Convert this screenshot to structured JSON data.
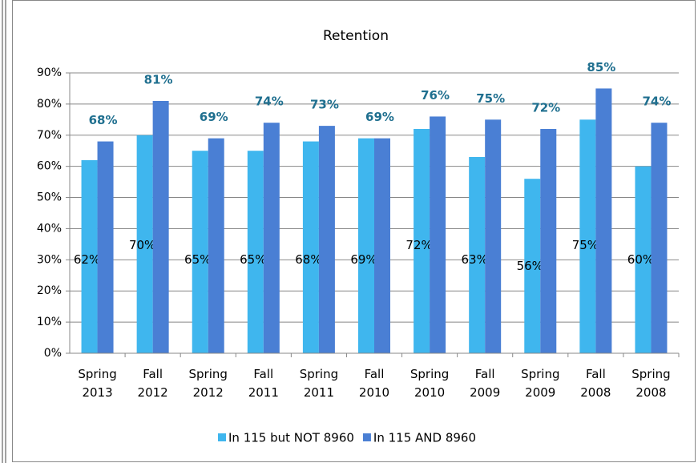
{
  "chart_data": {
    "type": "bar",
    "title": "Retention",
    "categories": [
      "Spring 2013",
      "Fall 2012",
      "Spring 2012",
      "Fall 2011",
      "Spring 2011",
      "Fall 2010",
      "Spring 2010",
      "Fall 2009",
      "Spring 2009",
      "Fall 2008",
      "Spring 2008"
    ],
    "series": [
      {
        "name": "In 115 but NOT 8960",
        "color": "#3fb6ee",
        "values": [
          62,
          70,
          65,
          65,
          68,
          69,
          72,
          63,
          56,
          75,
          60
        ],
        "value_labels": [
          "62%",
          "70%",
          "65%",
          "65%",
          "68%",
          "69%",
          "72%",
          "63%",
          "56%",
          "75%",
          "60%"
        ]
      },
      {
        "name": "In 115 AND 8960",
        "color": "#4a7fd4",
        "values": [
          68,
          81,
          69,
          74,
          73,
          69,
          76,
          75,
          72,
          85,
          74
        ],
        "value_labels": [
          "68%",
          "81%",
          "69%",
          "74%",
          "73%",
          "69%",
          "76%",
          "75%",
          "72%",
          "85%",
          "74%"
        ]
      }
    ],
    "ylim": [
      0,
      90
    ],
    "yticks": [
      {
        "value": 0,
        "label": "0%"
      },
      {
        "value": 10,
        "label": "10%"
      },
      {
        "value": 20,
        "label": "20%"
      },
      {
        "value": 30,
        "label": "30%"
      },
      {
        "value": 40,
        "label": "40%"
      },
      {
        "value": 50,
        "label": "50%"
      },
      {
        "value": 60,
        "label": "60%"
      },
      {
        "value": 70,
        "label": "70%"
      },
      {
        "value": 80,
        "label": "80%"
      },
      {
        "value": 90,
        "label": "90%"
      }
    ],
    "grid": true
  }
}
